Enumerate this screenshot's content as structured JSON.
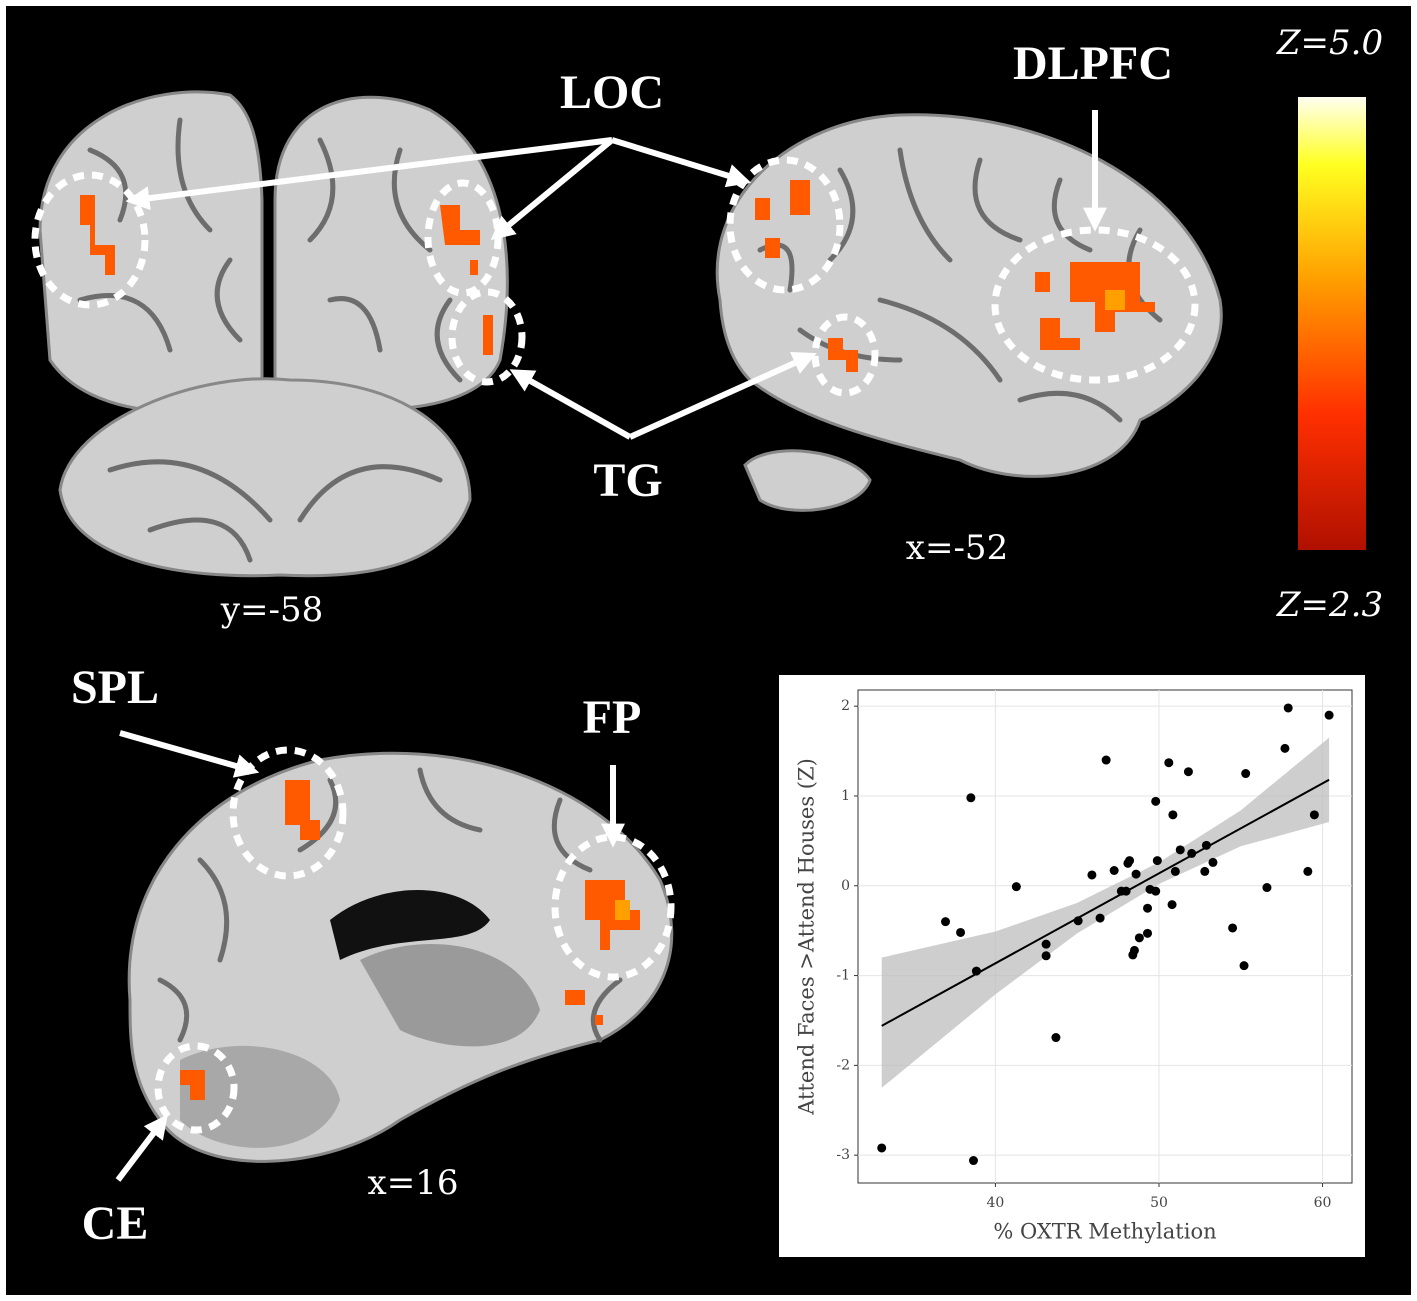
{
  "labels": {
    "loc": "LOC",
    "dlpfc": "DLPFC",
    "tg": "TG",
    "spl": "SPL",
    "fp": "FP",
    "ce": "CE",
    "coronal_slice": "y=-58",
    "sagittal_slice_top": "x=-52",
    "sagittal_slice_bottom": "x=16"
  },
  "colorbar": {
    "max_label": "Z=5.0",
    "min_label": "Z=2.3"
  },
  "chart_data": {
    "type": "scatter",
    "x_label": "% OXTR Methylation",
    "y_label": "Attend Faces >Attend Houses (Z)",
    "x": [
      33.05,
      38.66,
      38.5,
      36.95,
      37.87,
      38.84,
      41.28,
      43.1,
      43.1,
      43.7,
      45.06,
      45.9,
      46.4,
      46.77,
      47.26,
      47.7,
      47.99,
      48.1,
      48.2,
      48.4,
      48.5,
      48.6,
      48.8,
      49.3,
      49.3,
      49.45,
      49.8,
      49.9,
      49.8,
      50.6,
      50.8,
      50.85,
      51.0,
      51.3,
      51.8,
      52.0,
      52.8,
      52.9,
      53.3,
      54.5,
      55.2,
      55.3,
      56.6,
      57.7,
      57.9,
      59.1,
      59.5,
      60.4
    ],
    "values": [
      -2.92,
      -3.06,
      0.98,
      -0.4,
      -0.52,
      -0.95,
      -0.01,
      -0.65,
      -0.78,
      -1.69,
      -0.39,
      0.12,
      -0.36,
      1.4,
      0.17,
      -0.06,
      -0.06,
      0.25,
      0.28,
      -0.77,
      -0.72,
      0.13,
      -0.58,
      -0.53,
      -0.25,
      -0.04,
      -0.06,
      0.28,
      0.94,
      1.37,
      -0.21,
      0.79,
      0.16,
      0.4,
      1.27,
      0.36,
      0.16,
      0.45,
      0.26,
      -0.47,
      -0.89,
      1.25,
      -0.02,
      1.53,
      1.98,
      0.16,
      0.79,
      1.9
    ],
    "color": "#000000",
    "fit": {
      "x": [
        33.05,
        60.4
      ],
      "y": [
        -1.56,
        1.18
      ],
      "color": "#000000"
    },
    "band": {
      "x": [
        33.05,
        40,
        45,
        50,
        55,
        60.4
      ],
      "lower": [
        -2.25,
        -1.21,
        -0.53,
        0.02,
        0.44,
        0.71
      ],
      "upper": [
        -0.8,
        -0.51,
        -0.19,
        0.26,
        0.84,
        1.65
      ],
      "color": "#bdbdbd"
    },
    "xlim": [
      31.6,
      61.8
    ],
    "ylim": [
      -3.31,
      2.18
    ],
    "xticks": [
      40,
      50,
      60
    ],
    "yticks": [
      -3,
      -2,
      -1,
      0,
      1,
      2
    ],
    "grid": true
  }
}
